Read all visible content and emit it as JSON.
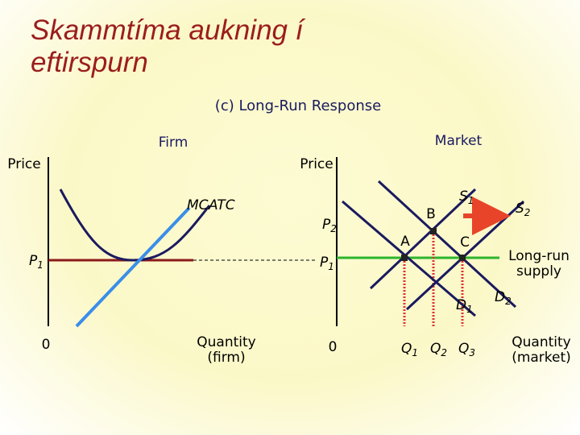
{
  "title": "Skammtíma aukning í eftirspurn",
  "subtitle": "(c) Long-Run Response",
  "firm": {
    "heading": "Firm",
    "y_label": "Price",
    "mc": "MC",
    "atc": "ATC",
    "p1": {
      "base": "P",
      "sub": "1"
    },
    "origin": "0",
    "x_label": [
      "Quantity",
      "(firm)"
    ]
  },
  "market": {
    "heading": "Market",
    "y_label": "Price",
    "p2": {
      "base": "P",
      "sub": "2"
    },
    "p1": {
      "base": "P",
      "sub": "1"
    },
    "origin": "0",
    "points": [
      "A",
      "B",
      "C"
    ],
    "s1": {
      "base": "S",
      "sub": "1"
    },
    "s2": {
      "base": "S",
      "sub": "2"
    },
    "d1": {
      "base": "D",
      "sub": "1"
    },
    "d2": {
      "base": "D",
      "sub": "2"
    },
    "long_run_supply": [
      "Long-run",
      "supply"
    ],
    "q1": {
      "base": "Q",
      "sub": "1"
    },
    "q2": {
      "base": "Q",
      "sub": "2"
    },
    "q3": {
      "base": "Q",
      "sub": "3"
    },
    "x_label": [
      "Quantity",
      "(market)"
    ]
  }
}
